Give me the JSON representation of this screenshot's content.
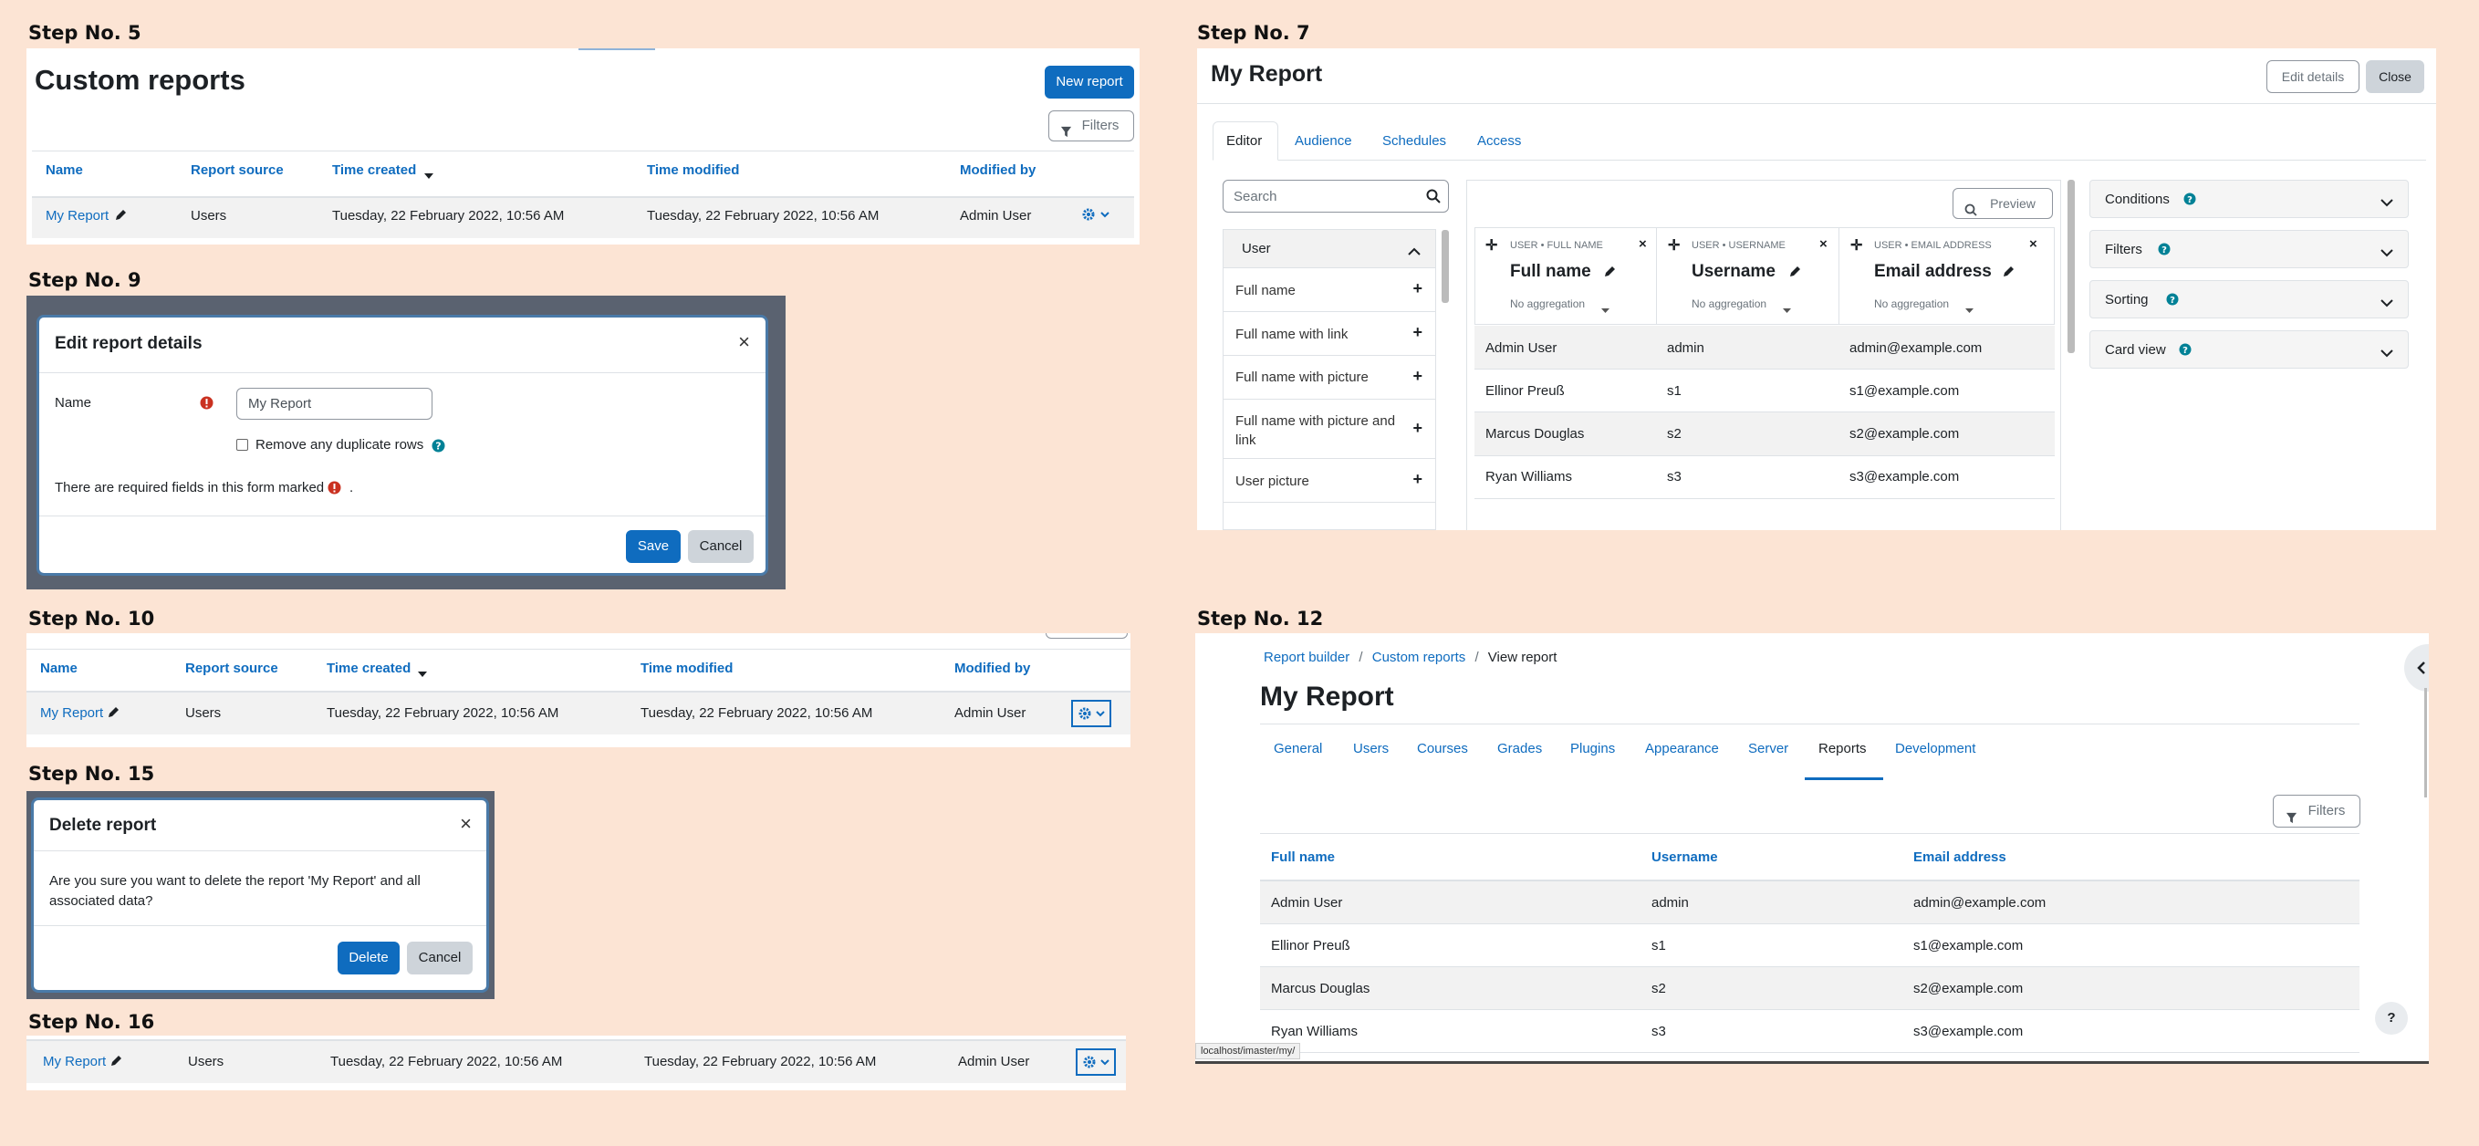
{
  "steps": {
    "s5": "Step No. 5",
    "s7": "Step No. 7",
    "s9": "Step No. 9",
    "s10": "Step No. 10",
    "s12": "Step No. 12",
    "s15": "Step No. 15",
    "s16": "Step No. 16"
  },
  "list": {
    "title": "Custom reports",
    "new_report": "New report",
    "filters": "Filters",
    "headers": [
      "Name",
      "Report source",
      "Time created",
      "Time modified",
      "Modified by"
    ],
    "row": {
      "name": "My Report",
      "source": "Users",
      "created": "Tuesday, 22 February 2022, 10:56 AM",
      "modified": "Tuesday, 22 February 2022, 10:56 AM",
      "by": "Admin User"
    }
  },
  "editor": {
    "title": "My Report",
    "edit_details": "Edit details",
    "close": "Close",
    "tabs": [
      "Editor",
      "Audience",
      "Schedules",
      "Access"
    ],
    "search_placeholder": "Search",
    "preview": "Preview",
    "group": "User",
    "fields": [
      "Full name",
      "Full name with link",
      "Full name with picture",
      "Full name with picture and link",
      "User picture"
    ],
    "columns": [
      {
        "cat": "USER • FULL NAME",
        "name": "Full name",
        "agg": "No aggregation"
      },
      {
        "cat": "USER • USERNAME",
        "name": "Username",
        "agg": "No aggregation"
      },
      {
        "cat": "USER • EMAIL ADDRESS",
        "name": "Email address",
        "agg": "No aggregation"
      }
    ],
    "rows": [
      [
        "Admin User",
        "admin",
        "admin@example.com"
      ],
      [
        "Ellinor Preuß",
        "s1",
        "s1@example.com"
      ],
      [
        "Marcus Douglas",
        "s2",
        "s2@example.com"
      ],
      [
        "Ryan Williams",
        "s3",
        "s3@example.com"
      ]
    ],
    "side": [
      "Conditions",
      "Filters",
      "Sorting",
      "Card view"
    ]
  },
  "edit_modal": {
    "title": "Edit report details",
    "name_label": "Name",
    "name_value": "My Report",
    "dup_label": "Remove any duplicate rows",
    "required_note": "There are required fields in this form marked",
    "required_end": ".",
    "save": "Save",
    "cancel": "Cancel"
  },
  "delete_modal": {
    "title": "Delete report",
    "body": "Are you sure you want to delete the report 'My Report' and all associated data?",
    "delete": "Delete",
    "cancel": "Cancel"
  },
  "view": {
    "breadcrumb": [
      "Report builder",
      "Custom reports",
      "View report"
    ],
    "title": "My Report",
    "tabs": [
      "General",
      "Users",
      "Courses",
      "Grades",
      "Plugins",
      "Appearance",
      "Server",
      "Reports",
      "Development"
    ],
    "filters": "Filters",
    "headers": [
      "Full name",
      "Username",
      "Email address"
    ],
    "rows": [
      [
        "Admin User",
        "admin",
        "admin@example.com"
      ],
      [
        "Ellinor Preuß",
        "s1",
        "s1@example.com"
      ],
      [
        "Marcus Douglas",
        "s2",
        "s2@example.com"
      ],
      [
        "Ryan Williams",
        "s3",
        "s3@example.com"
      ]
    ],
    "status_url": "localhost/imaster/my/",
    "help": "?"
  },
  "colors": {
    "primary": "#0f6cbf",
    "secondary": "#ced4da",
    "background": "#fce4d4",
    "danger": "#ca3120",
    "info": "#008196"
  }
}
